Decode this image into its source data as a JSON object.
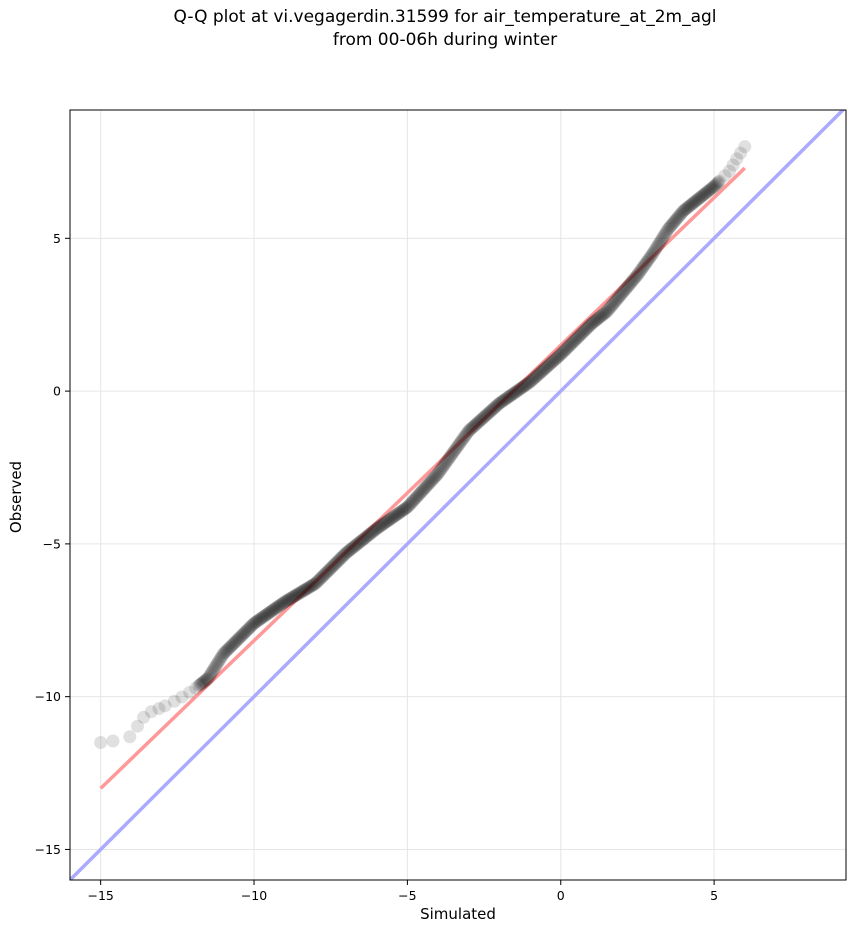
{
  "chart_data": {
    "type": "scatter",
    "title": "Q-Q plot at vi.vegagerdin.31599 for air_temperature_at_2m_agl",
    "subtitle": "from 00-06h during winter",
    "xlabel": "Simulated",
    "ylabel": "Observed",
    "xlim": [
      -16,
      9.3
    ],
    "ylim": [
      -16,
      9.2
    ],
    "xticks": [
      -15,
      -10,
      -5,
      0,
      5
    ],
    "yticks": [
      -15,
      -10,
      -5,
      0,
      5
    ],
    "xtick_labels": [
      "−15",
      "−10",
      "−5",
      "0",
      "5"
    ],
    "ytick_labels": [
      "−15",
      "−10",
      "−5",
      "0",
      "5"
    ],
    "grid": true,
    "point_color": "#000000",
    "reference_lines": [
      {
        "kind": "identity",
        "color": "#aaaaff",
        "x": [
          -16,
          9.3
        ],
        "y": [
          -16,
          9.3
        ]
      },
      {
        "kind": "fit",
        "color": "#ff9999",
        "x": [
          -15,
          6
        ],
        "y": [
          -13,
          7.3
        ]
      }
    ],
    "quantile_anchors": {
      "simulated": [
        -15,
        -14.6,
        -14.0,
        -13.7,
        -13.5,
        -13.0,
        -12.5,
        -12.0,
        -11.5,
        -11.0,
        -10.0,
        -9.0,
        -8.0,
        -7.0,
        -6.0,
        -5.0,
        -4.0,
        -3.0,
        -2.0,
        -1.0,
        0.0,
        1.0,
        1.5,
        2.0,
        2.5,
        3.0,
        3.5,
        4.0,
        4.5,
        5.0,
        5.5,
        5.8,
        6.0
      ],
      "observed": [
        -11.5,
        -11.45,
        -11.3,
        -10.8,
        -10.55,
        -10.35,
        -10.1,
        -9.8,
        -9.4,
        -8.6,
        -7.6,
        -6.9,
        -6.3,
        -5.3,
        -4.5,
        -3.8,
        -2.7,
        -1.3,
        -0.4,
        0.3,
        1.2,
        2.2,
        2.6,
        3.2,
        3.8,
        4.5,
        5.3,
        5.9,
        6.3,
        6.7,
        7.2,
        7.7,
        8.0
      ]
    }
  }
}
